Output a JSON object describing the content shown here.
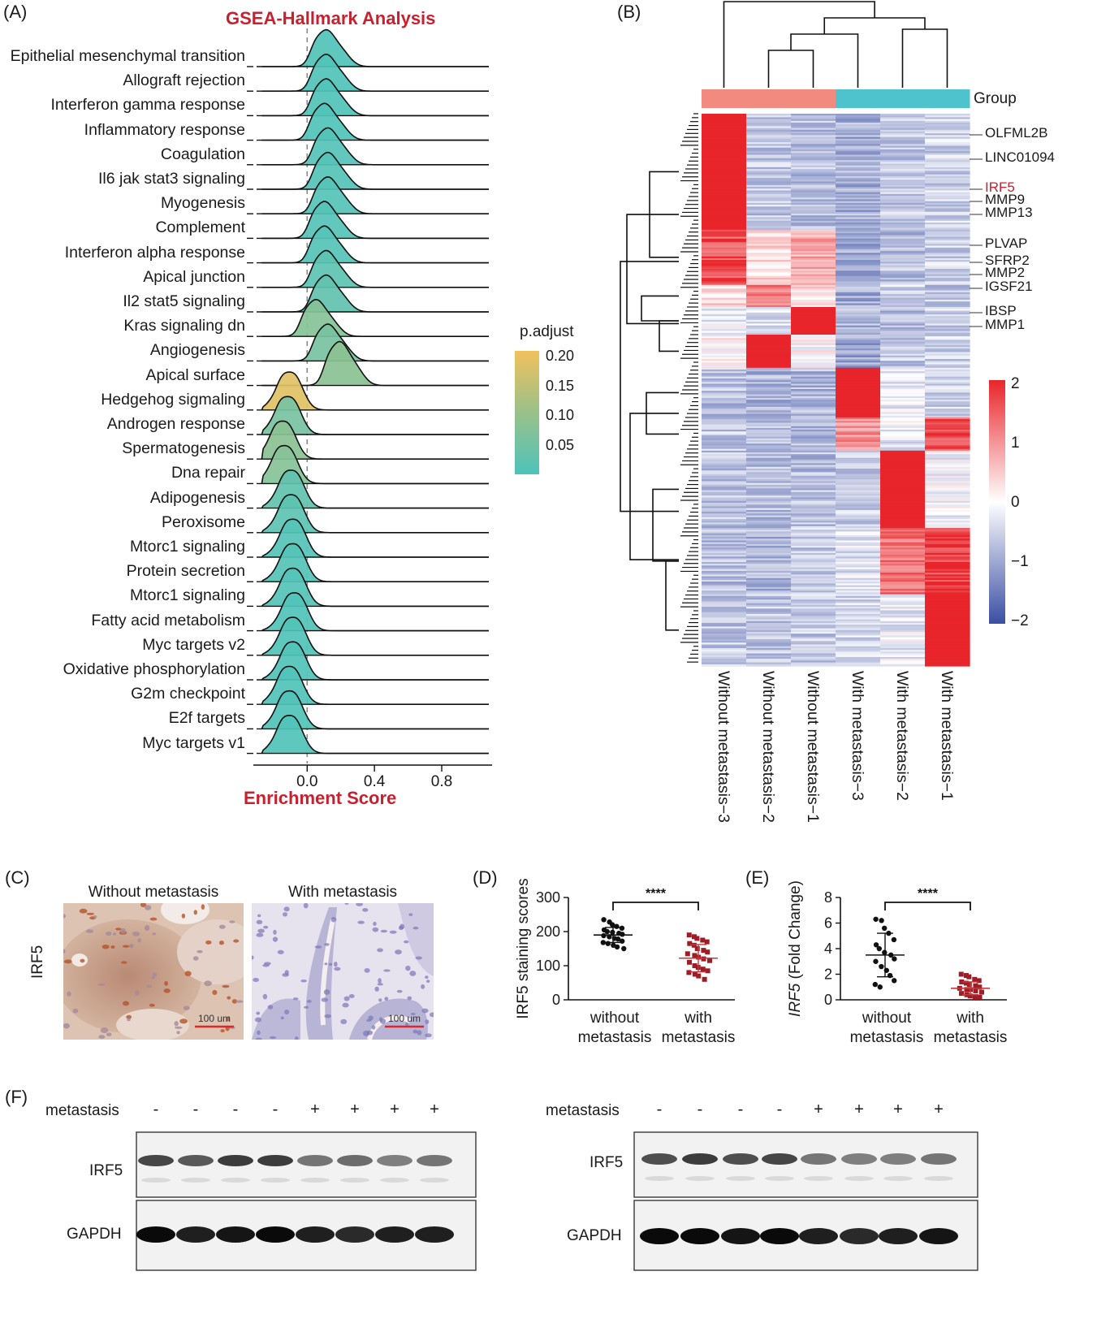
{
  "panels": {
    "a": "(A)",
    "b": "(B)",
    "c": "(C)",
    "d": "(D)",
    "e": "(E)",
    "f": "(F)"
  },
  "colors": {
    "title_red": "#c8202f",
    "heatmap_high": "#e8252b",
    "heatmap_low": "#3a4ea3",
    "group_without": "#f38a80",
    "group_with": "#4ec3cd",
    "ridge_low_padj": "#4ec3bb",
    "ridge_high_padj": "#f1c15c",
    "dot_without": "#111111",
    "dot_with": "#a01c24"
  },
  "chart_data": [
    {
      "type": "area",
      "chart_kind": "ridgeline",
      "title": "GSEA-Hallmark Analysis",
      "xlabel": "Enrichment Score",
      "x_ticks": [
        "0.0",
        "0.4",
        "0.8"
      ],
      "xlim": [
        -0.32,
        1.08
      ],
      "legend": {
        "title": "p.adjust",
        "ticks": [
          "0.20",
          "0.15",
          "0.10",
          "0.05"
        ],
        "range": [
          0.0,
          0.22
        ],
        "placement": "right"
      },
      "series": [
        {
          "name": "Epithelial mesenchymal transition",
          "peak": 0.11,
          "p_adjust": 0.005
        },
        {
          "name": "Allograft rejection",
          "peak": 0.11,
          "p_adjust": 0.005
        },
        {
          "name": "Interferon gamma response",
          "peak": 0.11,
          "p_adjust": 0.005
        },
        {
          "name": "Inflammatory response",
          "peak": 0.1,
          "p_adjust": 0.005
        },
        {
          "name": "Coagulation",
          "peak": 0.12,
          "p_adjust": 0.01
        },
        {
          "name": "Il6 jak stat3 signaling",
          "peak": 0.12,
          "p_adjust": 0.01
        },
        {
          "name": "Myogenesis",
          "peak": 0.12,
          "p_adjust": 0.01
        },
        {
          "name": "Complement",
          "peak": 0.1,
          "p_adjust": 0.01
        },
        {
          "name": "Interferon alpha response",
          "peak": 0.1,
          "p_adjust": 0.01
        },
        {
          "name": "Apical junction",
          "peak": 0.11,
          "p_adjust": 0.02
        },
        {
          "name": "Il2 stat5 signaling",
          "peak": 0.11,
          "p_adjust": 0.03
        },
        {
          "name": "Kras signaling dn",
          "peak": 0.05,
          "p_adjust": 0.08
        },
        {
          "name": "Angiogenesis",
          "peak": 0.12,
          "p_adjust": 0.06
        },
        {
          "name": "Apical surface",
          "peak": 0.19,
          "p_adjust": 0.09
        },
        {
          "name": "Hedgehog sigmaling",
          "peak": -0.08,
          "p_adjust": 0.2
        },
        {
          "name": "Androgen response",
          "peak": -0.09,
          "p_adjust": 0.06
        },
        {
          "name": "Spermatogenesis",
          "peak": -0.12,
          "p_adjust": 0.09
        },
        {
          "name": "Dna repair",
          "peak": -0.11,
          "p_adjust": 0.08
        },
        {
          "name": "Adipogenesis",
          "peak": -0.07,
          "p_adjust": 0.03
        },
        {
          "name": "Peroxisome",
          "peak": -0.07,
          "p_adjust": 0.02
        },
        {
          "name": "Mtorc1 signaling",
          "peak": -0.06,
          "p_adjust": 0.01
        },
        {
          "name": "Protein secretion",
          "peak": -0.06,
          "p_adjust": 0.01
        },
        {
          "name": "Mtorc1 signaling",
          "peak": -0.06,
          "p_adjust": 0.01
        },
        {
          "name": "Fatty acid metabolism",
          "peak": -0.05,
          "p_adjust": 0.005
        },
        {
          "name": "Myc targets v2",
          "peak": -0.06,
          "p_adjust": 0.005
        },
        {
          "name": "Oxidative phosphorylation",
          "peak": -0.06,
          "p_adjust": 0.005
        },
        {
          "name": "G2m checkpoint",
          "peak": -0.08,
          "p_adjust": 0.005
        },
        {
          "name": "E2f targets",
          "peak": -0.08,
          "p_adjust": 0.005
        },
        {
          "name": "Myc targets v1",
          "peak": -0.08,
          "p_adjust": 0.005
        }
      ]
    },
    {
      "type": "heatmap",
      "columns": [
        "Without metastasis−3",
        "Without metastasis−2",
        "Without metastasis−1",
        "With metastasis−3",
        "With metastasis−2",
        "With metastasis−1"
      ],
      "group_label": "Group",
      "groups": [
        "Without metastasis",
        "Without metastasis",
        "Without metastasis",
        "With metastasis",
        "With metastasis",
        "With metastasis"
      ],
      "legend_ticks": [
        "2",
        "1",
        "0",
        "−1",
        "−2"
      ],
      "value_range": [
        -2,
        2
      ],
      "legend_placement": "right",
      "gene_labels": [
        "OLFML2B",
        "LINC01094",
        "IRF5",
        "MMP9",
        "MMP13",
        "PLVAP",
        "SFRP2",
        "MMP2",
        "IGSF21",
        "IBSP",
        "MMP1"
      ],
      "highlight_gene": "IRF5",
      "row_clusters": [
        {
          "fraction": 0.21,
          "values": [
            2.0,
            -0.6,
            -0.7,
            -0.9,
            -0.6,
            -0.5
          ]
        },
        {
          "fraction": 0.1,
          "values": [
            1.6,
            0.3,
            0.8,
            -1.0,
            -0.7,
            -0.5
          ]
        },
        {
          "fraction": 0.04,
          "values": [
            0.3,
            1.2,
            0.2,
            -0.9,
            -0.5,
            -0.6
          ]
        },
        {
          "fraction": 0.05,
          "values": [
            -0.2,
            -0.4,
            2.0,
            -0.8,
            -0.7,
            -0.5
          ]
        },
        {
          "fraction": 0.06,
          "values": [
            0.1,
            2.0,
            0.0,
            -1.0,
            -0.6,
            -0.5
          ]
        },
        {
          "fraction": 0.09,
          "values": [
            -0.7,
            -0.8,
            -0.8,
            2.0,
            -0.3,
            -0.5
          ]
        },
        {
          "fraction": 0.06,
          "values": [
            -0.6,
            -0.7,
            -0.8,
            1.0,
            -0.2,
            1.6
          ]
        },
        {
          "fraction": 0.14,
          "values": [
            -0.7,
            -0.7,
            -0.7,
            -0.5,
            2.0,
            -0.1
          ]
        },
        {
          "fraction": 0.12,
          "values": [
            -0.7,
            -0.8,
            -0.6,
            -0.3,
            1.3,
            1.8
          ]
        },
        {
          "fraction": 0.13,
          "values": [
            -0.6,
            -0.6,
            -0.6,
            -0.4,
            -0.2,
            2.0
          ]
        }
      ]
    },
    {
      "type": "scatter",
      "ylabel": "IRF5 staining scores",
      "ylim": [
        0,
        300
      ],
      "y_ticks": [
        "300",
        "200",
        "100",
        "0"
      ],
      "categories": [
        "without\nmetastasis",
        "with\nmetastasis"
      ],
      "significance": "****",
      "series": [
        {
          "name": "without metastasis",
          "mean": 190,
          "sd": 22,
          "values": [
            235,
            228,
            220,
            215,
            210,
            205,
            200,
            198,
            195,
            192,
            188,
            185,
            180,
            178,
            172,
            168,
            165,
            160,
            155,
            150
          ]
        },
        {
          "name": "with metastasis",
          "mean": 122,
          "sd": 40,
          "values": [
            190,
            185,
            180,
            175,
            170,
            165,
            160,
            150,
            145,
            140,
            135,
            130,
            125,
            120,
            115,
            110,
            100,
            95,
            90,
            85,
            80,
            75,
            70,
            60
          ]
        }
      ]
    },
    {
      "type": "scatter",
      "ylabel": "IRF5 (Fold Change)",
      "ylim": [
        0,
        8
      ],
      "y_ticks": [
        "8",
        "6",
        "4",
        "2",
        "0"
      ],
      "categories": [
        "without\nmetastasis",
        "with\nmetastasis"
      ],
      "significance": "****",
      "series": [
        {
          "name": "without metastasis",
          "mean": 3.5,
          "sd": 1.7,
          "values": [
            6.3,
            6.2,
            5.6,
            5.2,
            4.7,
            4.3,
            4.0,
            3.7,
            3.5,
            3.2,
            3.0,
            2.6,
            2.3,
            1.9,
            1.5,
            1.2,
            1.0
          ]
        },
        {
          "name": "with metastasis",
          "mean": 0.9,
          "sd": 0.5,
          "values": [
            2.0,
            1.9,
            1.8,
            1.6,
            1.5,
            1.4,
            1.3,
            1.2,
            1.1,
            1.0,
            0.9,
            0.8,
            0.8,
            0.7,
            0.6,
            0.5,
            0.4,
            0.3,
            0.2,
            0.2
          ]
        }
      ]
    }
  ],
  "panel_c": {
    "titles": [
      "Without metastasis",
      "With metastasis"
    ],
    "row_label": "IRF5",
    "scale_bar": "100 um"
  },
  "panel_f": {
    "row_label": "metastasis",
    "blots": [
      {
        "signs": [
          "-",
          "-",
          "-",
          "-",
          "+",
          "+",
          "+",
          "+"
        ],
        "bands": [
          "IRF5",
          "GAPDH"
        ],
        "irf5_intensity": [
          0.8,
          0.7,
          0.85,
          0.85,
          0.55,
          0.6,
          0.5,
          0.55
        ],
        "gapdh_intensity": [
          1.0,
          0.9,
          0.95,
          1.0,
          0.9,
          0.85,
          0.9,
          0.9
        ]
      },
      {
        "signs": [
          "-",
          "-",
          "-",
          "-",
          "+",
          "+",
          "+",
          "+"
        ],
        "bands": [
          "IRF5",
          "GAPDH"
        ],
        "irf5_intensity": [
          0.75,
          0.85,
          0.75,
          0.8,
          0.55,
          0.5,
          0.5,
          0.55
        ],
        "gapdh_intensity": [
          1.0,
          1.0,
          0.95,
          1.0,
          0.9,
          0.85,
          0.9,
          0.95
        ]
      }
    ]
  }
}
